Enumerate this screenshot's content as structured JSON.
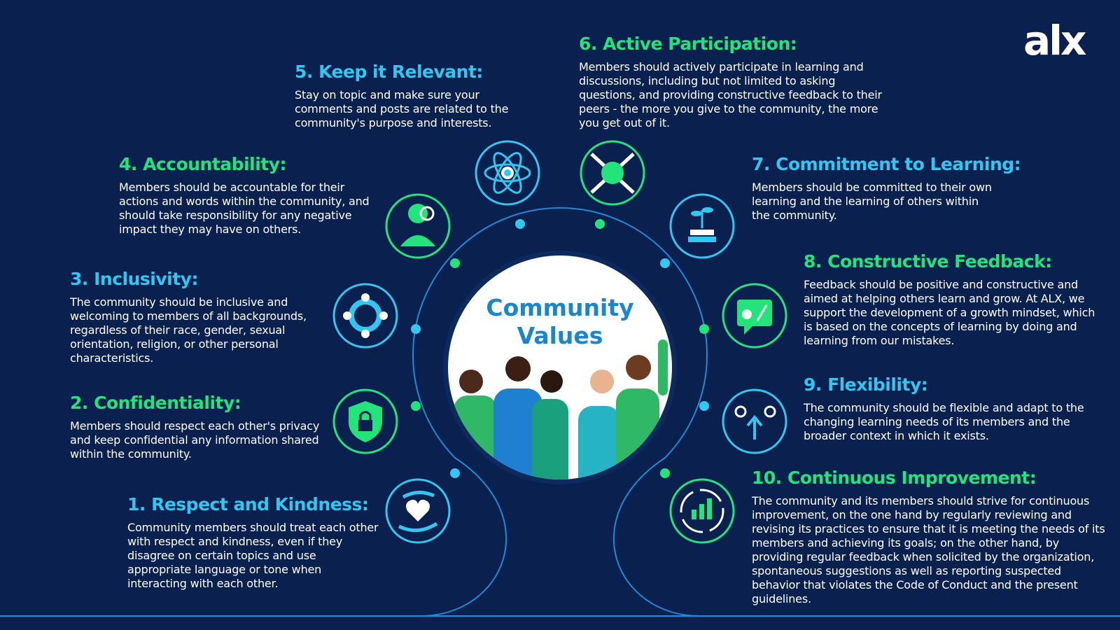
{
  "brand": {
    "logo_text": "alx"
  },
  "colors": {
    "background": "#0a2150",
    "cyan": "#33c6f0",
    "green": "#22e47a",
    "center_title": "#1b86c9"
  },
  "center": {
    "title_line1": "Community",
    "title_line2": "Values"
  },
  "values": [
    {
      "heading": "1. Respect and Kindness:",
      "body": "Community members should treat each other with respect and kindness, even if they disagree on certain topics and use appropriate language or tone when interacting with each other.",
      "icon": "heart-hands-icon"
    },
    {
      "heading": "2. Confidentiality:",
      "body": "Members should respect each other's privacy and keep confidential any information shared within the community.",
      "icon": "shield-lock-icon"
    },
    {
      "heading": "3. Inclusivity:",
      "body": "The community should be inclusive and welcoming to members of all backgrounds, regardless of their race, gender, sexual orientation, religion, or other personal characteristics.",
      "icon": "people-circle-icon"
    },
    {
      "heading": "4. Accountability:",
      "body": "Members should be accountable for their actions and words within the community, and should take responsibility for any negative impact they may have on others.",
      "icon": "person-magnifier-icon"
    },
    {
      "heading": "5. Keep it Relevant:",
      "body": "Stay on topic and make sure your comments and posts are related to the community's purpose and interests.",
      "icon": "atom-target-icon"
    },
    {
      "heading": "6. Active Participation:",
      "body": "Members should actively participate in learning and discussions, including but not limited to asking questions, and providing constructive feedback to their peers - the more you give to the community, the more you get out of it.",
      "icon": "handshake-icon"
    },
    {
      "heading": "7. Commitment to Learning:",
      "body": "Members should be committed to their own learning and the learning of others within the community.",
      "icon": "plant-books-icon"
    },
    {
      "heading": "8. Constructive Feedback:",
      "body": "Feedback should be positive and constructive and aimed at helping others learn and grow. At ALX, we support the development of a growth mindset, which is based on the concepts of learning by doing and learning from our mistakes.",
      "icon": "feedback-chat-icon"
    },
    {
      "heading": "9. Flexibility:",
      "body": "The community should be flexible and adapt to the changing learning needs of its members and the broader context in which it exists.",
      "icon": "gears-arrows-icon"
    },
    {
      "heading": "10. Continuous Improvement:",
      "body": "The community and its members should strive for continuous improvement, on the one hand by regularly reviewing and revising its practices to ensure that it is meeting the needs of its members and achieving its goals; on the other hand, by providing regular feedback when solicited by the organization, spontaneous suggestions as well as reporting suspected behavior that violates the Code of Conduct and the present guidelines.",
      "icon": "chart-cycle-icon"
    }
  ]
}
